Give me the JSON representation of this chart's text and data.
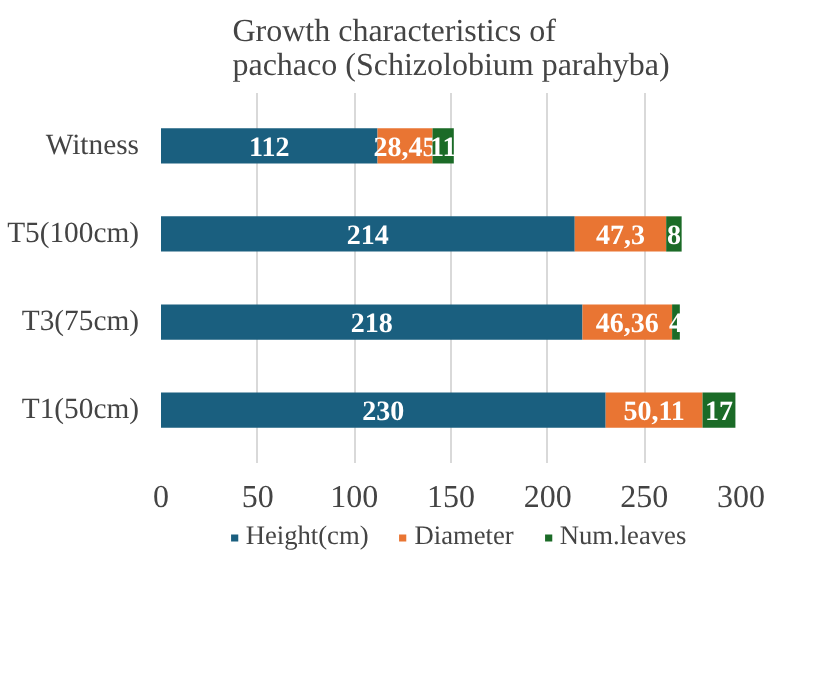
{
  "chart_data": {
    "type": "bar",
    "orientation": "horizontal",
    "stacked": true,
    "title": "Growth characteristics of pachaco (Schizolobium parahyba)",
    "categories": [
      "Witness",
      "T5(100cm)",
      "T3(75cm)",
      "T1(50cm)"
    ],
    "series": [
      {
        "name": "Height(cm)",
        "color": "#1a5f7f",
        "values": [
          112,
          214,
          218,
          230
        ],
        "value_labels": [
          "112",
          "214",
          "218",
          "230"
        ]
      },
      {
        "name": "Diameter",
        "color": "#e97533",
        "values": [
          28.45,
          47.3,
          46.36,
          50.11
        ],
        "value_labels": [
          "28,45",
          "47,3",
          "46,36",
          "50,11"
        ]
      },
      {
        "name": "Num.leaves",
        "color": "#1b6b27",
        "values": [
          11,
          8,
          4,
          17
        ],
        "value_labels": [
          "11",
          "8",
          "4",
          "17"
        ]
      }
    ],
    "xlim": [
      0,
      300
    ],
    "xticks": [
      0,
      50,
      100,
      150,
      200,
      250,
      300
    ],
    "grid": "x",
    "legend": "bottom"
  }
}
